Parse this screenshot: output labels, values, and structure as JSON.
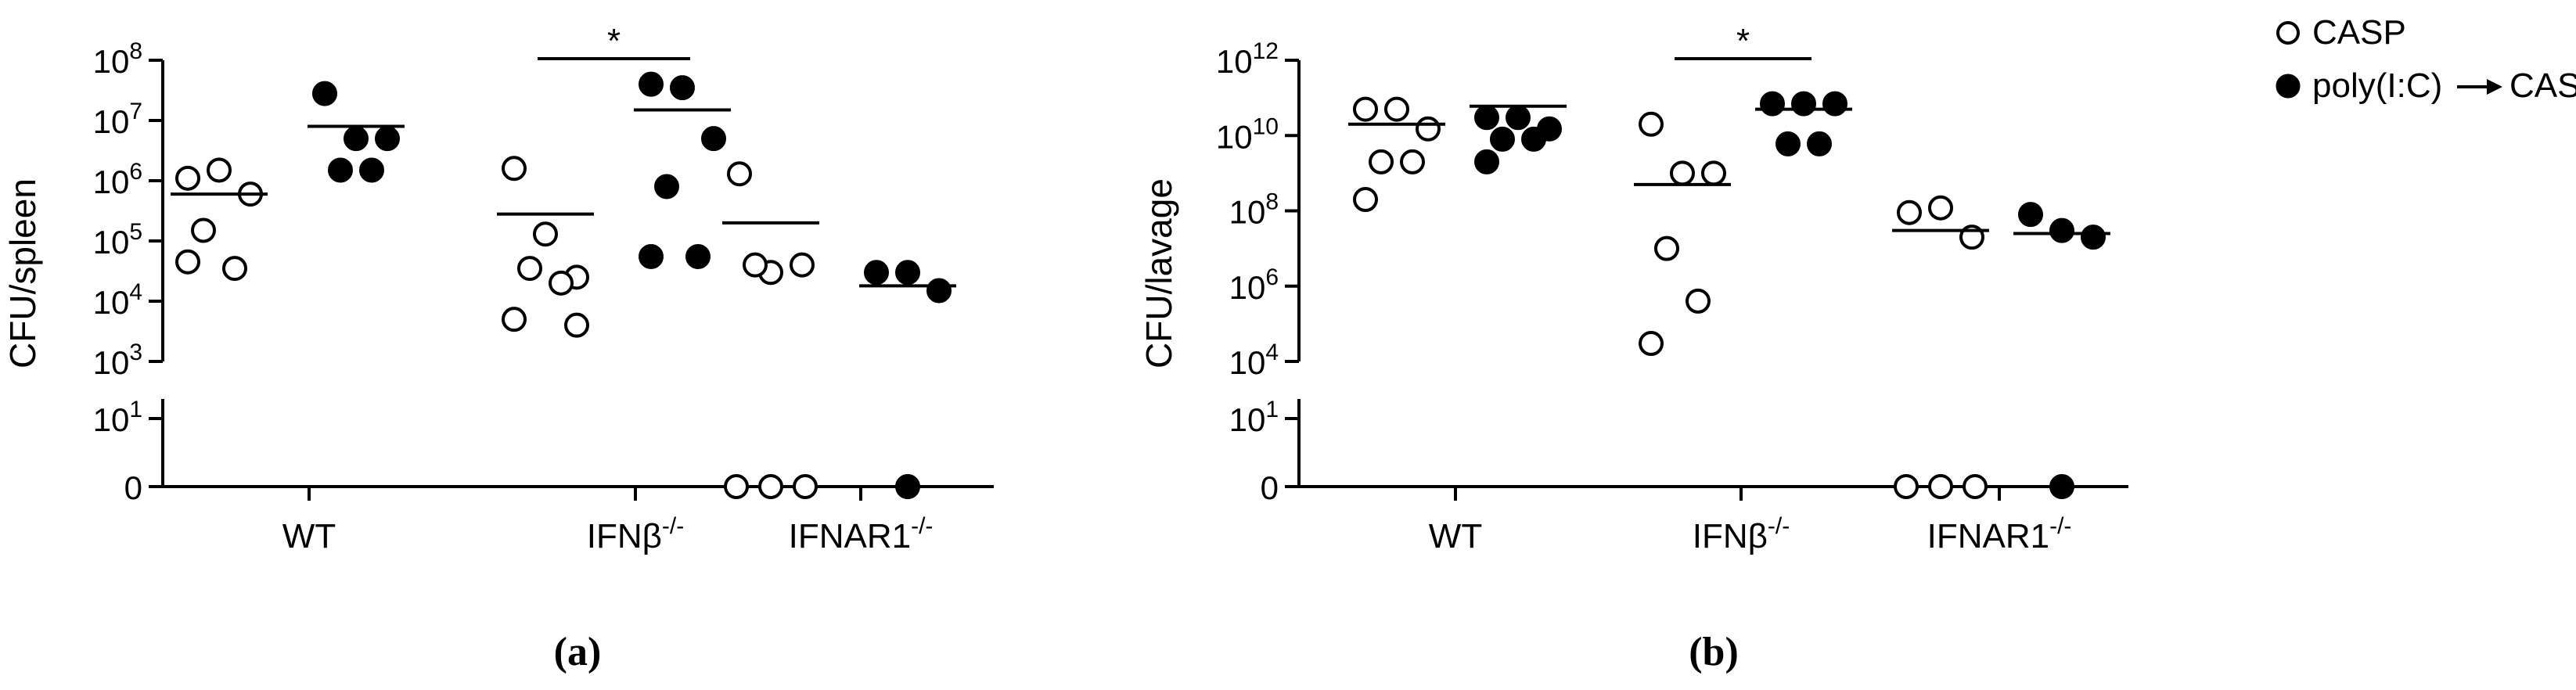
{
  "legend": {
    "items": [
      {
        "label": "CASP",
        "marker": "open"
      },
      {
        "label": "poly(I:C)→ CASP",
        "marker": "filled",
        "prefix": "poly(I:C)",
        "suffix": "CASP"
      }
    ]
  },
  "groups": [
    {
      "label": "WT",
      "sup": ""
    },
    {
      "label": "IFNβ",
      "sup": "-/-"
    },
    {
      "label": "IFNAR1",
      "sup": "-/-"
    }
  ],
  "chart_data": [
    {
      "type": "scatter",
      "panel": "(a)",
      "ylabel": "CFU/spleen",
      "yscale": "log-broken",
      "upper_ticks": [
        {
          "base": "10",
          "exp": "8"
        },
        {
          "base": "10",
          "exp": "7"
        },
        {
          "base": "10",
          "exp": "6"
        },
        {
          "base": "10",
          "exp": "5"
        },
        {
          "base": "10",
          "exp": "4"
        },
        {
          "base": "10",
          "exp": "3"
        }
      ],
      "lower_ticks": [
        {
          "base": "10",
          "exp": "1"
        },
        {
          "base": "0",
          "exp": ""
        }
      ],
      "ylim_log10": [
        3,
        8
      ],
      "significance": [
        {
          "group": 1,
          "text": "*"
        }
      ],
      "series": [
        {
          "name": "CASP",
          "groups": [
            {
              "values": [
                1100000,
                1500000,
                600000,
                150000,
                35000,
                45000
              ],
              "median": 600000
            },
            {
              "values": [
                1600000,
                130000,
                25000,
                35000,
                20000,
                5000,
                4000
              ],
              "median": 280000
            },
            {
              "values": [
                1300000,
                30000,
                40000,
                40000,
                0,
                0,
                0
              ],
              "median": 200000
            }
          ]
        },
        {
          "name": "poly(I:C)→ CASP",
          "groups": [
            {
              "values": [
                28000000,
                5000000,
                5000000,
                1500000,
                1500000
              ],
              "median": 8000000
            },
            {
              "values": [
                40000000,
                35000000,
                5000000,
                800000,
                55000,
                55000
              ],
              "median": 15000000
            },
            {
              "values": [
                30000,
                30000,
                15000,
                0
              ],
              "median": 18000
            }
          ]
        }
      ]
    },
    {
      "type": "scatter",
      "panel": "(b)",
      "ylabel": "CFU/lavage",
      "yscale": "log-broken",
      "upper_ticks": [
        {
          "base": "10",
          "exp": "12"
        },
        {
          "base": "10",
          "exp": "10"
        },
        {
          "base": "10",
          "exp": "8"
        },
        {
          "base": "10",
          "exp": "6"
        },
        {
          "base": "10",
          "exp": "4"
        }
      ],
      "lower_ticks": [
        {
          "base": "10",
          "exp": "1"
        },
        {
          "base": "0",
          "exp": ""
        }
      ],
      "ylim_log10": [
        4,
        12
      ],
      "significance": [
        {
          "group": 1,
          "text": "*"
        }
      ],
      "series": [
        {
          "name": "CASP",
          "groups": [
            {
              "values": [
                50000000000,
                50000000000,
                15000000000,
                2000000000,
                2000000000,
                200000000
              ],
              "median": 20000000000
            },
            {
              "values": [
                20000000000,
                1000000000,
                1000000000,
                10000000,
                400000,
                30000
              ],
              "median": 500000000
            },
            {
              "values": [
                90000000,
                120000000,
                20000000,
                0,
                0,
                0
              ],
              "median": 30000000
            }
          ]
        },
        {
          "name": "poly(I:C)→ CASP",
          "groups": [
            {
              "values": [
                30000000000,
                30000000000,
                15000000000,
                8000000000,
                8000000000,
                2000000000
              ],
              "median": 60000000000
            },
            {
              "values": [
                70000000000,
                70000000000,
                70000000000,
                6000000000,
                6000000000
              ],
              "median": 50000000000
            },
            {
              "values": [
                80000000,
                30000000,
                20000000,
                0
              ],
              "median": 25000000
            }
          ]
        }
      ]
    }
  ]
}
